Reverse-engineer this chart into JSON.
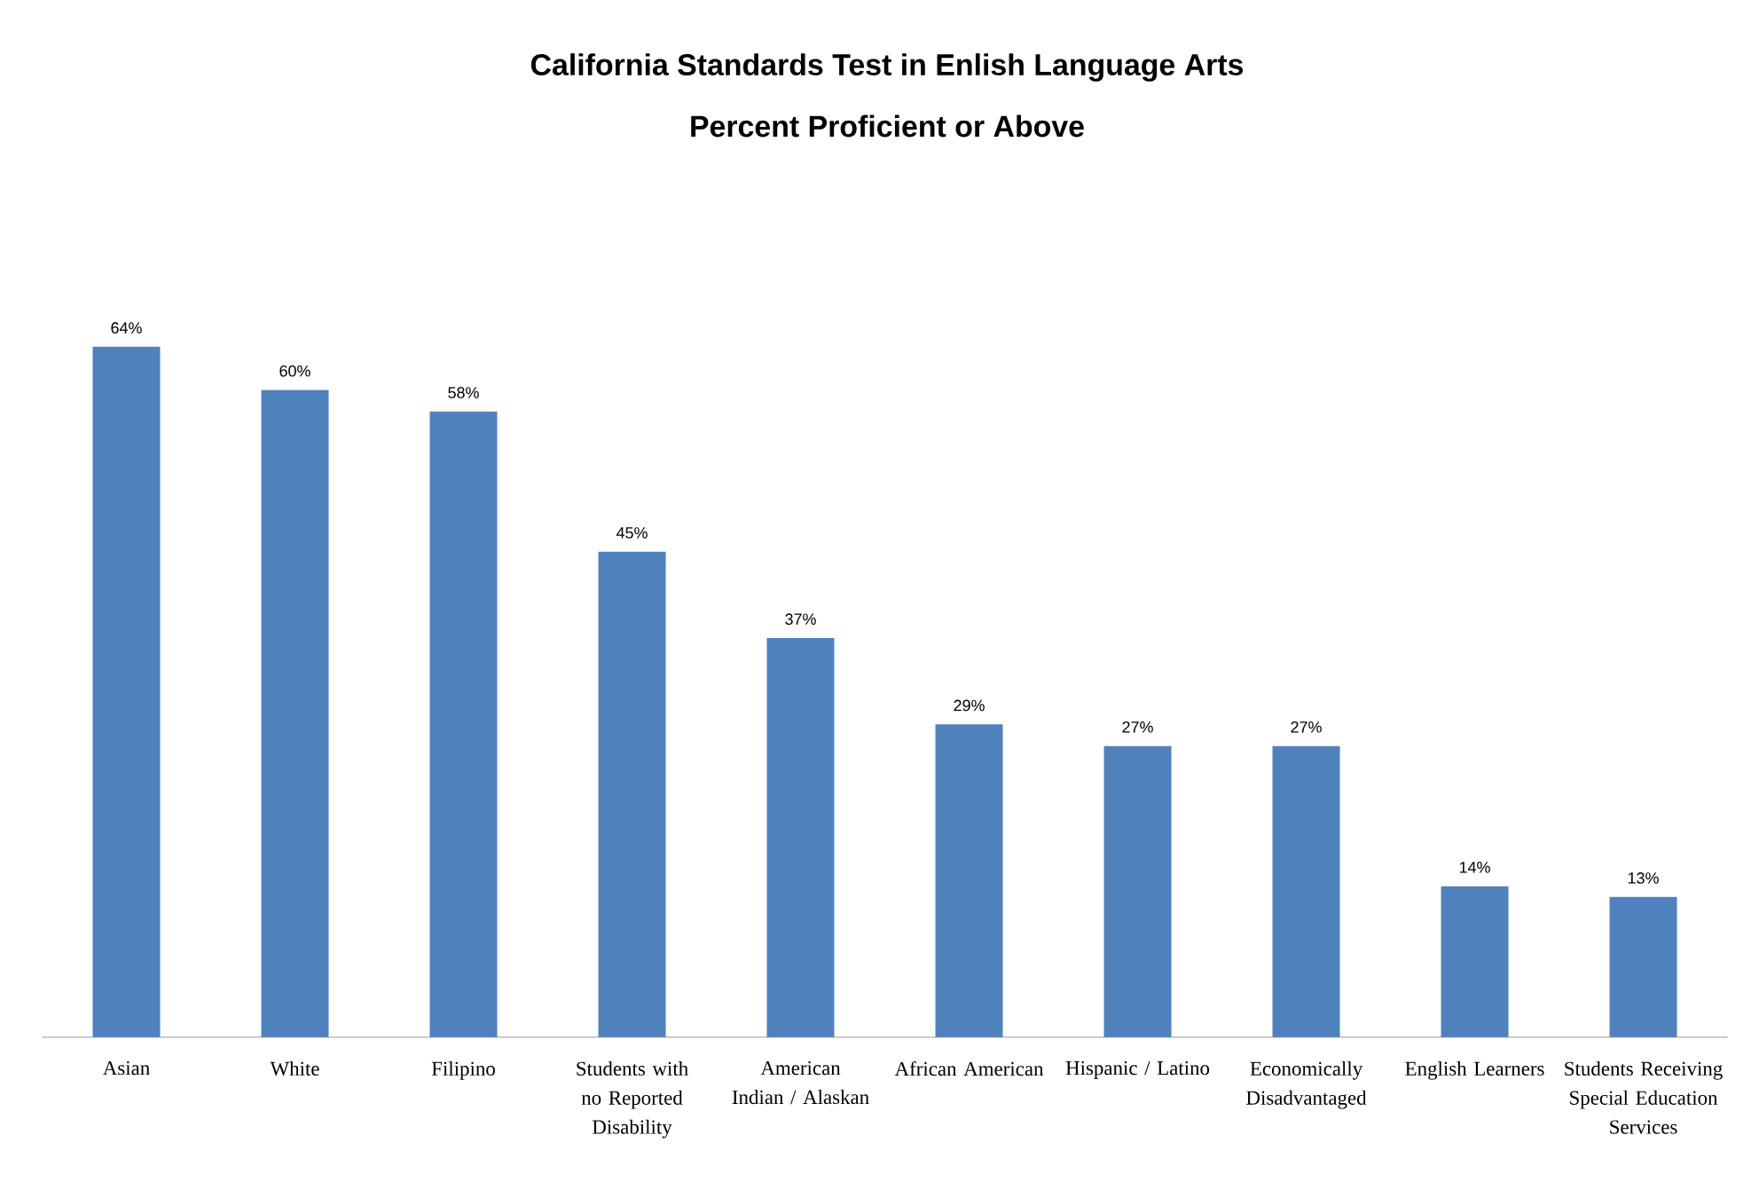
{
  "chart_data": {
    "type": "bar",
    "title": "California Standards Test in Enlish Language Arts",
    "subtitle": "Percent Proficient or Above",
    "categories": [
      "Asian",
      "White",
      "Filipino",
      "Students with no Reported Disability",
      "American Indian / Alaskan",
      "African American",
      "Hispanic / Latino",
      "Economically Disadvantaged",
      "English Learners",
      "Students Receiving Special Education Services"
    ],
    "values": [
      64,
      60,
      58,
      45,
      37,
      29,
      27,
      27,
      14,
      13
    ],
    "value_labels": [
      "64%",
      "60%",
      "58%",
      "45%",
      "37%",
      "29%",
      "27%",
      "27%",
      "14%",
      "13%"
    ],
    "color": "#4f81bd"
  }
}
